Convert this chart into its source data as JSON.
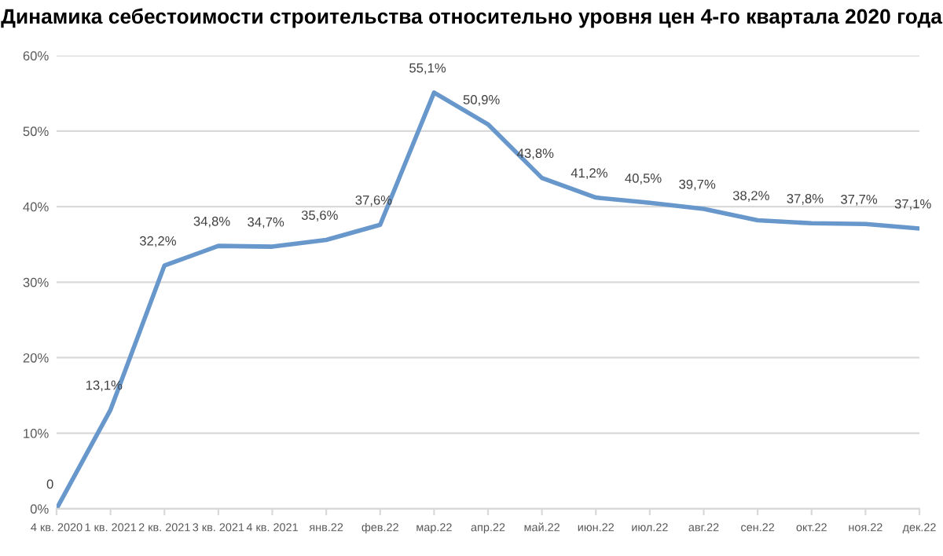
{
  "chart_data": {
    "type": "line",
    "title": "Динамика себестоимости строительства относительно уровня цен 4-го квартала 2020 года",
    "categories": [
      "4 кв. 2020",
      "1 кв. 2021",
      "2 кв. 2021",
      "3 кв. 2021",
      "4 кв. 2021",
      "янв.22",
      "фев.22",
      "мар.22",
      "апр.22",
      "май.22",
      "июн.22",
      "июл.22",
      "авг.22",
      "сен.22",
      "окт.22",
      "ноя.22",
      "дек.22"
    ],
    "series": [
      {
        "color": "#6797cb",
        "values": [
          0,
          13.1,
          32.2,
          34.8,
          34.7,
          35.6,
          37.6,
          55.1,
          50.9,
          43.8,
          41.2,
          40.5,
          39.7,
          38.2,
          37.8,
          37.7,
          37.1
        ],
        "value_labels": [
          "0",
          "13,1%",
          "32,2%",
          "34,8%",
          "34,7%",
          "35,6%",
          "37,6%",
          "55,1%",
          "50,9%",
          "43,8%",
          "41,2%",
          "40,5%",
          "39,7%",
          "38,2%",
          "37,8%",
          "37,7%",
          "37,1%"
        ]
      }
    ],
    "ylim": [
      0,
      60
    ],
    "yticks": [
      {
        "value": 0,
        "label": "0%"
      },
      {
        "value": 10,
        "label": "10%"
      },
      {
        "value": 20,
        "label": "20%"
      },
      {
        "value": 30,
        "label": "30%"
      },
      {
        "value": 40,
        "label": "40%"
      },
      {
        "value": 50,
        "label": "50%"
      },
      {
        "value": 60,
        "label": "60%"
      }
    ],
    "grid": "y",
    "legend": false,
    "marker": "none",
    "line_style": "solid"
  }
}
